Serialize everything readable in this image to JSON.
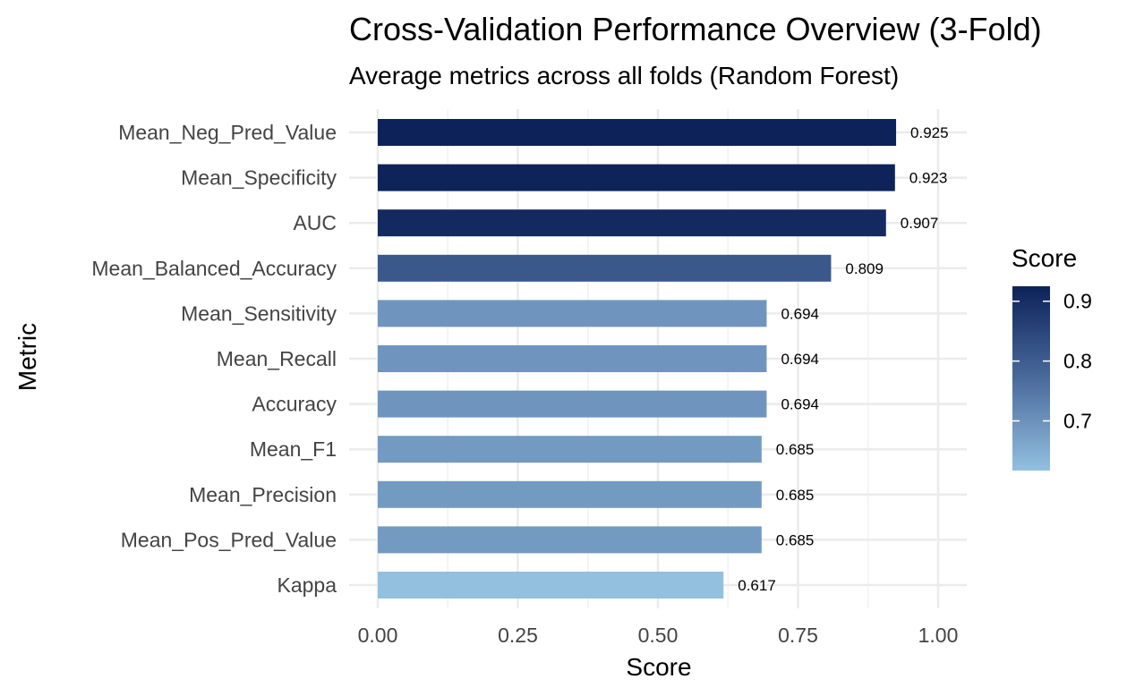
{
  "chart_data": {
    "type": "bar",
    "orientation": "horizontal",
    "title": "Cross-Validation Performance Overview (3-Fold)",
    "subtitle": "Average metrics across all folds (Random Forest)",
    "xlabel": "Score",
    "ylabel": "Metric",
    "xlim": [
      0,
      1.0
    ],
    "x_ticks": [
      0.0,
      0.25,
      0.5,
      0.75,
      1.0
    ],
    "x_tick_labels": [
      "0.00",
      "0.25",
      "0.50",
      "0.75",
      "1.00"
    ],
    "grid": true,
    "categories": [
      "Mean_Neg_Pred_Value",
      "Mean_Specificity",
      "AUC",
      "Mean_Balanced_Accuracy",
      "Mean_Sensitivity",
      "Mean_Recall",
      "Accuracy",
      "Mean_F1",
      "Mean_Precision",
      "Mean_Pos_Pred_Value",
      "Kappa"
    ],
    "values": [
      0.925,
      0.923,
      0.907,
      0.809,
      0.694,
      0.694,
      0.694,
      0.685,
      0.685,
      0.685,
      0.617
    ],
    "value_labels": [
      "0.925",
      "0.923",
      "0.907",
      "0.809",
      "0.694",
      "0.694",
      "0.694",
      "0.685",
      "0.685",
      "0.685",
      "0.617"
    ],
    "legend": {
      "title": "Score",
      "type": "colorbar",
      "position": "right",
      "ticks": [
        0.7,
        0.8,
        0.9
      ],
      "tick_labels": [
        "0.7",
        "0.8",
        "0.9"
      ],
      "range": [
        0.617,
        0.925
      ],
      "color_low": "#93c0df",
      "color_high": "#0c2259"
    }
  }
}
